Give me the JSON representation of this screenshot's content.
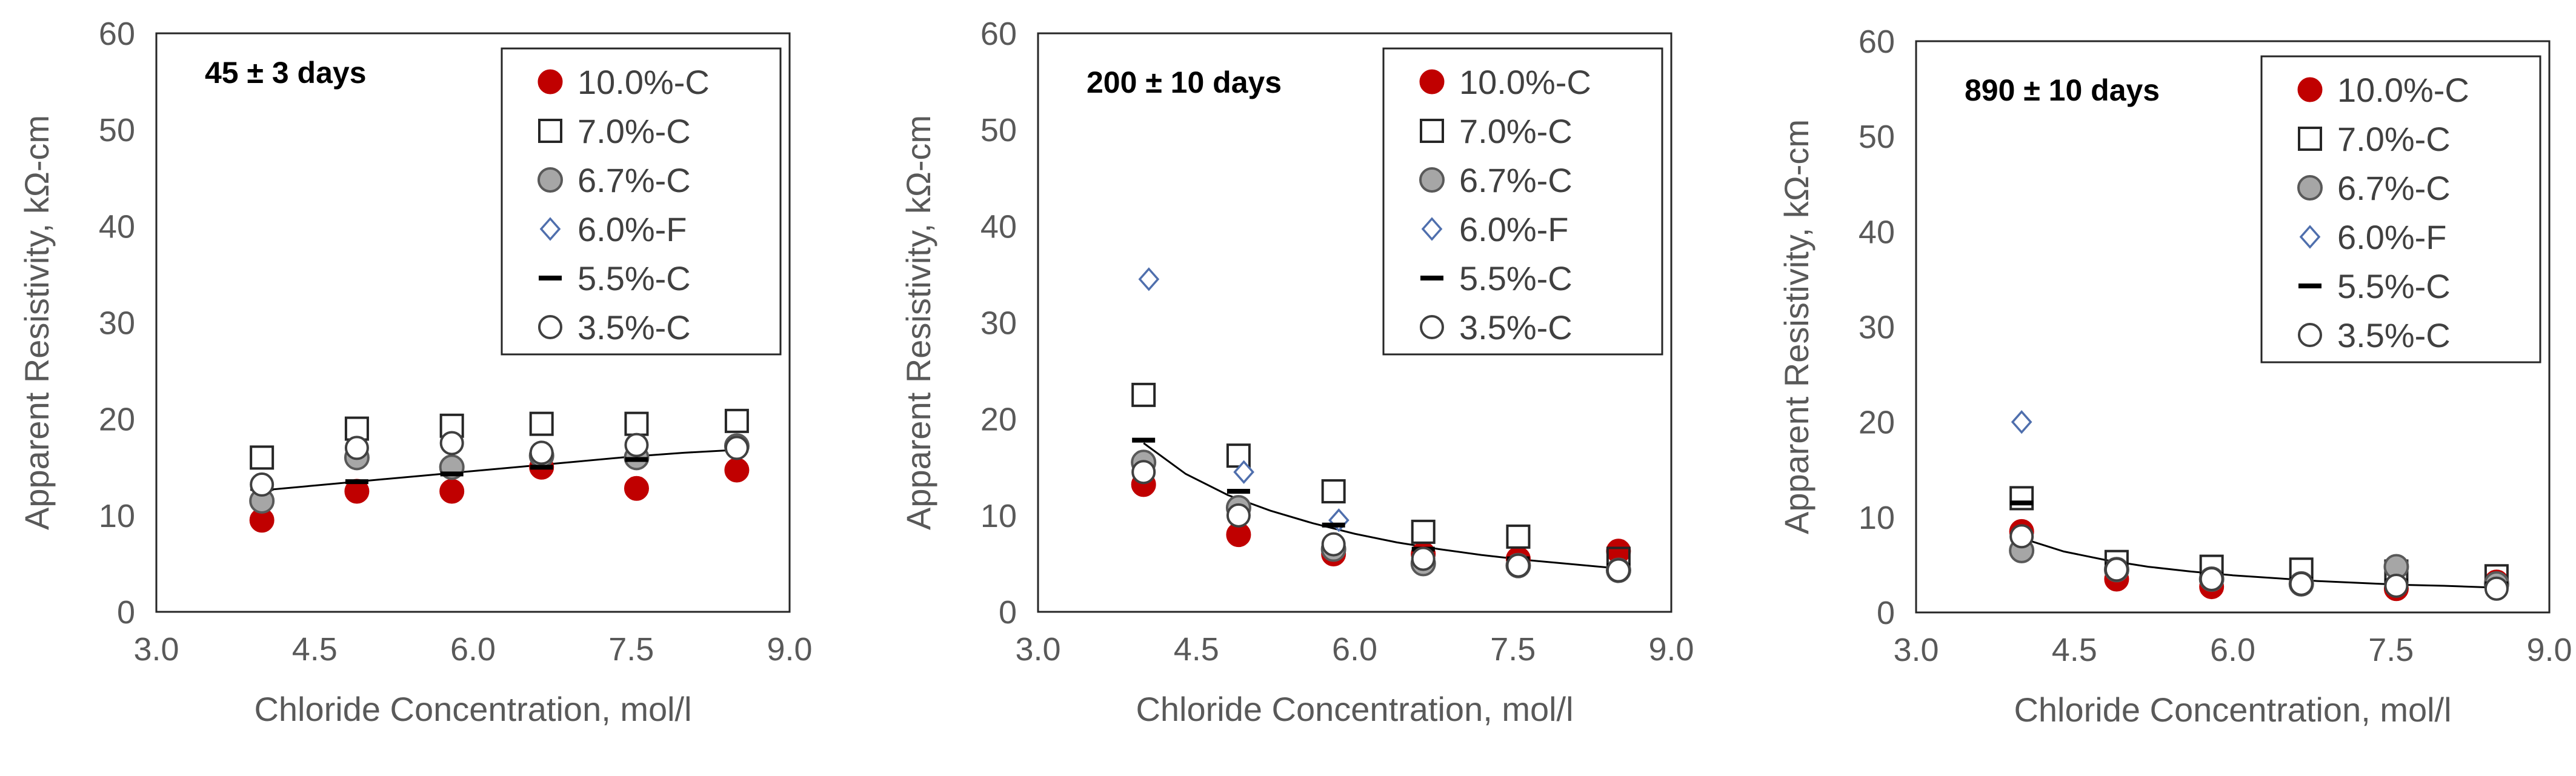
{
  "chart_data": [
    {
      "type": "scatter",
      "annotation": "45 ± 3 days",
      "xlabel": "Chloride Concentration, mol/l",
      "ylabel": "Apparent Resistivity, kΩ-cm",
      "xlim": [
        3.0,
        9.0
      ],
      "ylim": [
        0,
        60
      ],
      "xticks": [
        "3.0",
        "4.5",
        "6.0",
        "7.5",
        "9.0"
      ],
      "yticks": [
        "0",
        "10",
        "20",
        "30",
        "40",
        "50",
        "60"
      ],
      "legend_position": "top-right",
      "series": [
        {
          "name": "10.0%-C",
          "marker": "filled-circle-red",
          "x": [
            4.0,
            4.9,
            5.8,
            6.65,
            7.55,
            8.5
          ],
          "y": [
            9.5,
            12.5,
            12.5,
            15.0,
            12.8,
            14.7
          ]
        },
        {
          "name": "7.0%-C",
          "marker": "open-square",
          "x": [
            4.0,
            4.9,
            5.8,
            6.65,
            7.55,
            8.5
          ],
          "y": [
            16.0,
            19.0,
            19.3,
            19.5,
            19.5,
            19.8
          ]
        },
        {
          "name": "6.7%-C",
          "marker": "filled-circle-gray",
          "x": [
            4.0,
            4.9,
            5.8,
            6.65,
            7.55,
            8.5
          ],
          "y": [
            11.5,
            16.0,
            15.0,
            16.2,
            16.0,
            17.2
          ]
        },
        {
          "name": "6.0%-F",
          "marker": "open-diamond",
          "x": [],
          "y": []
        },
        {
          "name": "5.5%-C",
          "marker": "dash",
          "x": [
            4.0,
            4.9,
            5.8,
            6.65,
            7.55,
            8.5
          ],
          "y": [
            12.8,
            13.5,
            14.3,
            15.0,
            15.8,
            16.8
          ]
        },
        {
          "name": "3.5%-C",
          "marker": "open-circle",
          "x": [
            4.0,
            4.9,
            5.8,
            6.65,
            7.55,
            8.5
          ],
          "y": [
            13.2,
            17.0,
            17.5,
            16.5,
            17.3,
            17.0
          ]
        }
      ],
      "trendline": {
        "x": [
          4.0,
          4.5,
          5.0,
          5.5,
          6.0,
          6.5,
          7.0,
          7.5,
          8.0,
          8.5
        ],
        "y": [
          12.6,
          13.1,
          13.6,
          14.1,
          14.6,
          15.1,
          15.6,
          16.1,
          16.5,
          16.8
        ]
      }
    },
    {
      "type": "scatter",
      "annotation": "200 ± 10 days",
      "xlabel": "Chloride Concentration, mol/l",
      "ylabel": "Apparent Resistivity, kΩ-cm",
      "xlim": [
        3.0,
        9.0
      ],
      "ylim": [
        0,
        60
      ],
      "xticks": [
        "3.0",
        "4.5",
        "6.0",
        "7.5",
        "9.0"
      ],
      "yticks": [
        "0",
        "10",
        "20",
        "30",
        "40",
        "50",
        "60"
      ],
      "legend_position": "top-right",
      "series": [
        {
          "name": "10.0%-C",
          "marker": "filled-circle-red",
          "x": [
            4.0,
            4.9,
            5.8,
            6.65,
            7.55,
            8.5
          ],
          "y": [
            13.2,
            8.0,
            6.0,
            6.0,
            5.5,
            6.3
          ]
        },
        {
          "name": "7.0%-C",
          "marker": "open-square",
          "x": [
            4.0,
            4.9,
            5.8,
            6.65,
            7.55,
            8.5
          ],
          "y": [
            22.5,
            16.2,
            12.5,
            8.3,
            7.8,
            5.5
          ]
        },
        {
          "name": "6.7%-C",
          "marker": "filled-circle-gray",
          "x": [
            4.0,
            4.9,
            5.8,
            6.65,
            7.55,
            8.5
          ],
          "y": [
            15.5,
            10.8,
            6.5,
            5.0,
            4.8,
            4.3
          ]
        },
        {
          "name": "6.0%-F",
          "marker": "open-diamond",
          "x": [
            4.05,
            4.95,
            5.85
          ],
          "y": [
            34.5,
            14.5,
            9.5
          ]
        },
        {
          "name": "5.5%-C",
          "marker": "dash",
          "x": [
            4.0,
            4.9,
            5.8,
            6.65,
            7.55,
            8.5
          ],
          "y": [
            17.8,
            12.5,
            9.0,
            6.5,
            5.5,
            4.8
          ]
        },
        {
          "name": "3.5%-C",
          "marker": "open-circle",
          "x": [
            4.0,
            4.9,
            5.8,
            6.65,
            7.55,
            8.5
          ],
          "y": [
            14.5,
            10.0,
            7.0,
            5.5,
            4.8,
            4.3
          ]
        }
      ],
      "trendline": {
        "x": [
          4.0,
          4.4,
          4.8,
          5.2,
          5.6,
          6.0,
          6.4,
          6.8,
          7.2,
          7.6,
          8.0,
          8.5
        ],
        "y": [
          17.5,
          14.3,
          12.1,
          10.5,
          9.2,
          8.1,
          7.2,
          6.5,
          5.9,
          5.4,
          5.0,
          4.5
        ]
      }
    },
    {
      "type": "scatter",
      "annotation": "890 ± 10 days",
      "xlabel": "Chloride Concentration, mol/l",
      "ylabel": "Apparent Resistivity, kΩ-cm",
      "xlim": [
        3.0,
        9.0
      ],
      "ylim": [
        0,
        60
      ],
      "xticks": [
        "3.0",
        "4.5",
        "6.0",
        "7.5",
        "9.0"
      ],
      "yticks": [
        "0",
        "10",
        "20",
        "30",
        "40",
        "50",
        "60"
      ],
      "legend_position": "top-right",
      "series": [
        {
          "name": "10.0%-C",
          "marker": "filled-circle-red",
          "x": [
            4.0,
            4.9,
            5.8,
            6.65,
            7.55,
            8.5
          ],
          "y": [
            8.5,
            3.5,
            2.7,
            3.0,
            2.5,
            3.2
          ]
        },
        {
          "name": "7.0%-C",
          "marker": "open-square",
          "x": [
            4.0,
            4.9,
            5.8,
            6.65,
            7.55,
            8.5
          ],
          "y": [
            12.0,
            5.3,
            4.8,
            4.5,
            4.3,
            3.8
          ]
        },
        {
          "name": "6.7%-C",
          "marker": "filled-circle-gray",
          "x": [
            4.0,
            4.9,
            5.8,
            6.65,
            7.55,
            8.5
          ],
          "y": [
            6.5,
            4.5,
            3.5,
            3.0,
            4.8,
            3.0
          ]
        },
        {
          "name": "6.0%-F",
          "marker": "open-diamond",
          "x": [
            4.0
          ],
          "y": [
            20.0
          ]
        },
        {
          "name": "5.5%-C",
          "marker": "dash",
          "x": [
            4.0,
            4.9,
            5.8,
            6.65,
            7.55,
            8.5
          ],
          "y": [
            11.5,
            5.0,
            4.0,
            3.5,
            3.3,
            3.0
          ]
        },
        {
          "name": "3.5%-C",
          "marker": "open-circle",
          "x": [
            4.0,
            4.9,
            5.8,
            6.65,
            7.55,
            8.5
          ],
          "y": [
            8.0,
            4.5,
            3.5,
            3.0,
            2.8,
            2.5
          ]
        }
      ],
      "trendline": {
        "x": [
          4.0,
          4.4,
          4.8,
          5.2,
          5.6,
          6.0,
          6.4,
          6.8,
          7.2,
          7.6,
          8.0,
          8.5
        ],
        "y": [
          7.8,
          6.4,
          5.5,
          4.8,
          4.3,
          3.9,
          3.6,
          3.3,
          3.1,
          2.9,
          2.8,
          2.6
        ]
      }
    }
  ]
}
